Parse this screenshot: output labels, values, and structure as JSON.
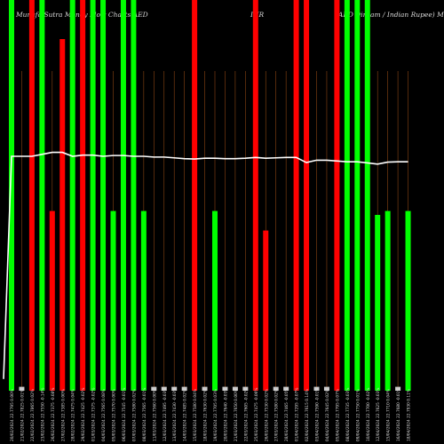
{
  "title": {
    "left": "Munafa Sutra  Money Flow Charts AED",
    "middle": "INR",
    "right": "(AED Dirham / Indian Rupee) Munafa"
  },
  "colors": {
    "background": "#000000",
    "up_bar": "#00ff00",
    "down_bar": "#ff0000",
    "flat_bar": "#cccccc",
    "price_line": "#ffffff",
    "grid_line": "#8B4513",
    "label": "#d9d9d9"
  },
  "chart_data": {
    "type": "bar",
    "description_free": true,
    "ylim": [
      0,
      100
    ],
    "categories": [
      "20 Feb 2024",
      "21 Feb 2024",
      "22 Feb 2024",
      "23 Feb 2024",
      "26 Feb 2024",
      "27 Feb 2024",
      "28 Feb 2024",
      "29 Feb 2024",
      "01 Mar 2024",
      "04 Mar 2024",
      "05 Mar 2024",
      "06 Mar 2024",
      "07 Mar 2024",
      "08 Mar 2024",
      "11 Mar 2024",
      "12 Mar 2024",
      "13 Mar 2024",
      "14 Mar 2024",
      "15 Mar 2024",
      "18 Mar 2024",
      "19 Mar 2024",
      "20 Mar 2024",
      "21 Mar 2024",
      "22 Mar 2024",
      "25 Mar 2024",
      "26 Mar 2024",
      "27 Mar 2024",
      "28 Mar 2024",
      "01 Apr 2024",
      "02 Apr 2024",
      "03 Apr 2024",
      "04 Apr 2024",
      "05 Apr 2024",
      "08 Apr 2024",
      "09 Apr 2024",
      "10 Apr 2024",
      "12 Apr 2024",
      "15 Apr 2024",
      "16 Apr 2024",
      "18 Apr 2024"
    ],
    "xtick_labels": [
      "20/02/2024 22.7795 0.00%",
      "21/02/2024 22.7825 0.01%",
      "22/02/2024 22.7865 0.02%",
      "23/02/2024 22.7550 -0.14%",
      "26/02/2024 22.7375 -0.08%",
      "27/02/2024 22.7385 0.00%",
      "28/02/2024 22.7475 0.04%",
      "29/02/2024 22.7425 -0.02%",
      "01/03/2024 22.7375 -0.02%",
      "04/03/2024 22.7565 0.08%",
      "05/03/2024 22.7570 0.00%",
      "06/03/2024 22.7545 -0.01%",
      "07/03/2024 22.7580 0.02%",
      "08/03/2024 22.7565 -0.01%",
      "11/03/2024 22.7560 0.00%",
      "12/03/2024 22.7495 -0.03%",
      "13/03/2024 22.7430 -0.03%",
      "14/03/2024 22.7485 0.02%",
      "15/03/2024 22.7580 0.04%",
      "18/03/2024 22.7630 0.02%",
      "19/03/2024 22.7705 0.03%",
      "20/03/2024 22.7640 -0.03%",
      "21/03/2024 22.7650 0.00%",
      "22/03/2024 22.7605 -0.02%",
      "25/03/2024 22.7475 -0.06%",
      "26/03/2024 22.7530 0.02%",
      "27/03/2024 22.7580 0.02%",
      "28/03/2024 22.7465 -0.05%",
      "01/04/2024 22.7295 -0.07%",
      "02/04/2024 22.7615 0.14%",
      "03/04/2024 22.7590 -0.01%",
      "04/04/2024 22.7645 0.02%",
      "05/04/2024 22.7795 0.07%",
      "08/04/2024 22.7735 -0.03%",
      "09/04/2024 22.7750 0.01%",
      "10/04/2024 22.7700 -0.02%",
      "12/04/2024 22.7625 -0.03%",
      "15/04/2024 22.7710 0.04%",
      "16/04/2024 22.7680 -0.01%",
      "18/04/2024 22.7930 0.11%"
    ],
    "series": [
      {
        "values": [
          100,
          1,
          100,
          100,
          46,
          90,
          100,
          100,
          100,
          100,
          46,
          100,
          100,
          46,
          1,
          1,
          1,
          1,
          100,
          1,
          46,
          1,
          1,
          1,
          100,
          41,
          1,
          1,
          100,
          100,
          1,
          1,
          100,
          100,
          100,
          100,
          45,
          46,
          1,
          46
        ],
        "direction": [
          "up",
          "flat",
          "down",
          "up",
          "down",
          "down",
          "up",
          "down",
          "up",
          "up",
          "up",
          "up",
          "up",
          "up",
          "flat",
          "flat",
          "flat",
          "flat",
          "down",
          "flat",
          "up",
          "flat",
          "flat",
          "flat",
          "down",
          "down",
          "flat",
          "flat",
          "down",
          "down",
          "flat",
          "flat",
          "down",
          "up",
          "up",
          "up",
          "up",
          "up",
          "flat",
          "up"
        ]
      },
      {
        "kind": "price_line",
        "values": [
          60,
          60,
          60,
          60.5,
          61,
          61,
          60,
          60.3,
          60.3,
          60,
          60.2,
          60.2,
          60,
          60,
          59.8,
          59.8,
          59.6,
          59.4,
          59.3,
          59.5,
          59.5,
          59.4,
          59.4,
          59.5,
          59.7,
          59.5,
          59.6,
          59.7,
          59.7,
          58.4,
          59.0,
          59.0,
          58.8,
          58.6,
          58.6,
          58.3,
          58.0,
          58.5,
          58.6,
          58.6
        ],
        "start_value": 3
      }
    ]
  }
}
